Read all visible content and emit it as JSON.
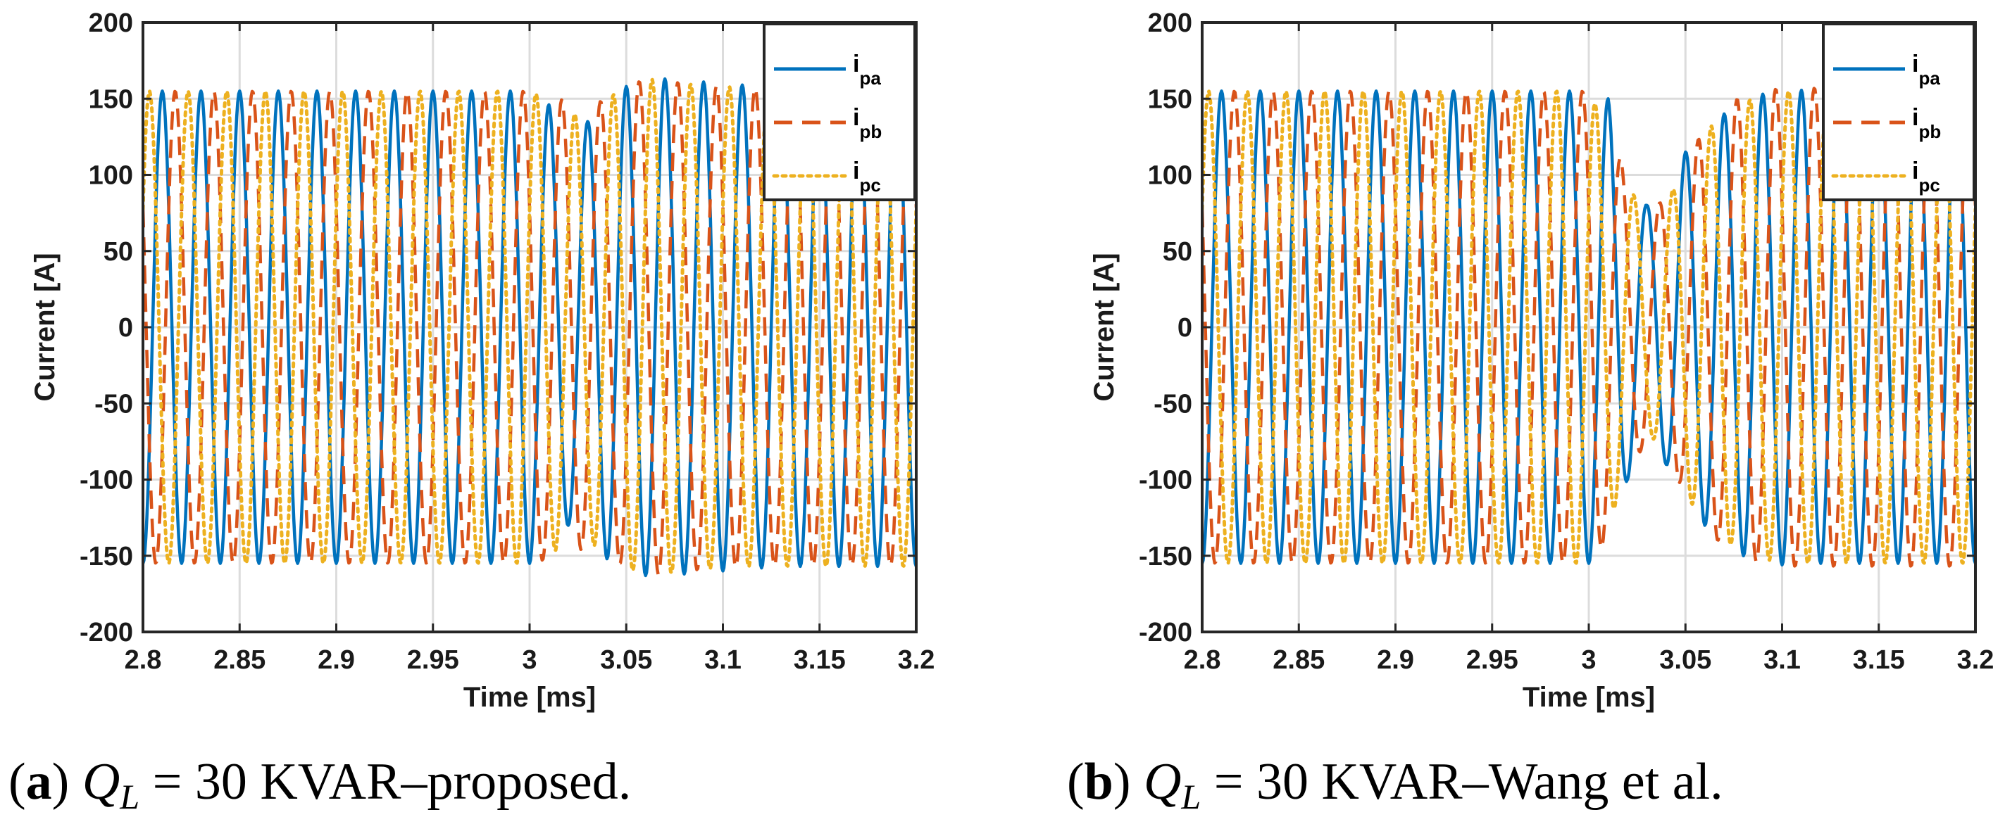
{
  "chart_data": [
    {
      "type": "line",
      "panel_label": "a",
      "caption_lhs": "Q",
      "caption_sub": "L",
      "caption_eq": "=",
      "caption_rest": "30 KVAR–proposed.",
      "xlabel": "Time [ms]",
      "ylabel": "Current [A]",
      "xlim": [
        2.8,
        3.2
      ],
      "ylim": [
        -200,
        200
      ],
      "grid": true,
      "legend": "top-right",
      "x_ticks": [
        2.8,
        2.85,
        2.9,
        2.95,
        3.0,
        3.05,
        3.1,
        3.15,
        3.2
      ],
      "x_tick_labels": [
        "2.8",
        "2.85",
        "2.9",
        "2.95",
        "3",
        "3.05",
        "3.1",
        "3.15",
        "3.2"
      ],
      "y_ticks": [
        -200,
        -150,
        -100,
        -50,
        0,
        50,
        100,
        150,
        200
      ],
      "y_tick_labels": [
        "-200",
        "-150",
        "-100",
        "-50",
        "0",
        "50",
        "100",
        "150",
        "200"
      ],
      "signal": {
        "period": 0.02,
        "sample_step": 0.0005
      },
      "amplitude_profile": {
        "x": [
          2.8,
          3.0,
          3.01,
          3.02,
          3.03,
          3.04,
          3.05,
          3.06,
          3.07,
          3.08,
          3.1,
          3.12,
          3.14,
          3.2
        ],
        "a": [
          155,
          155,
          146,
          130,
          135,
          152,
          158,
          163,
          163,
          162,
          160,
          158,
          157,
          157
        ],
        "b": [
          155,
          155,
          152,
          148,
          145,
          150,
          158,
          163,
          162,
          160,
          158,
          157,
          157,
          157
        ],
        "c": [
          155,
          155,
          150,
          140,
          140,
          150,
          158,
          163,
          162,
          160,
          158,
          157,
          157,
          157
        ]
      },
      "series": [
        {
          "name": "i",
          "sub": "pa",
          "phase_deg": 0,
          "color": "#0072BD",
          "style": "solid"
        },
        {
          "name": "i",
          "sub": "pb",
          "phase_deg": -120,
          "color": "#D95319",
          "style": "dashed"
        },
        {
          "name": "i",
          "sub": "pc",
          "phase_deg": 120,
          "color": "#EDB120",
          "style": "dotted"
        }
      ]
    },
    {
      "type": "line",
      "panel_label": "b",
      "caption_lhs": "Q",
      "caption_sub": "L",
      "caption_eq": "=",
      "caption_rest": "30 KVAR–Wang et al.",
      "xlabel": "Time [ms]",
      "ylabel": "Current [A]",
      "xlim": [
        2.8,
        3.2
      ],
      "ylim": [
        -200,
        200
      ],
      "grid": true,
      "legend": "top-right",
      "x_ticks": [
        2.8,
        2.85,
        2.9,
        2.95,
        3.0,
        3.05,
        3.1,
        3.15,
        3.2
      ],
      "x_tick_labels": [
        "2.8",
        "2.85",
        "2.9",
        "2.95",
        "3",
        "3.05",
        "3.1",
        "3.15",
        "3.2"
      ],
      "y_ticks": [
        -200,
        -150,
        -100,
        -50,
        0,
        50,
        100,
        150,
        200
      ],
      "y_tick_labels": [
        "-200",
        "-150",
        "-100",
        "-50",
        "0",
        "50",
        "100",
        "150",
        "200"
      ],
      "signal": {
        "period": 0.02,
        "sample_step": 0.0005
      },
      "amplitude_profile": {
        "x": [
          2.8,
          3.0,
          3.01,
          3.02,
          3.03,
          3.04,
          3.05,
          3.06,
          3.07,
          3.08,
          3.09,
          3.1,
          3.12,
          3.14,
          3.2
        ],
        "a": [
          155,
          155,
          150,
          100,
          80,
          90,
          115,
          130,
          140,
          150,
          153,
          156,
          155,
          155,
          155
        ],
        "b": [
          155,
          155,
          140,
          95,
          75,
          85,
          110,
          130,
          145,
          152,
          155,
          157,
          157,
          157,
          157
        ],
        "c": [
          155,
          155,
          130,
          95,
          70,
          80,
          110,
          128,
          140,
          148,
          152,
          155,
          155,
          155,
          155
        ]
      },
      "series": [
        {
          "name": "i",
          "sub": "pa",
          "phase_deg": 0,
          "color": "#0072BD",
          "style": "solid"
        },
        {
          "name": "i",
          "sub": "pb",
          "phase_deg": -120,
          "color": "#D95319",
          "style": "dashed"
        },
        {
          "name": "i",
          "sub": "pc",
          "phase_deg": 120,
          "color": "#EDB120",
          "style": "dotted"
        }
      ]
    }
  ]
}
